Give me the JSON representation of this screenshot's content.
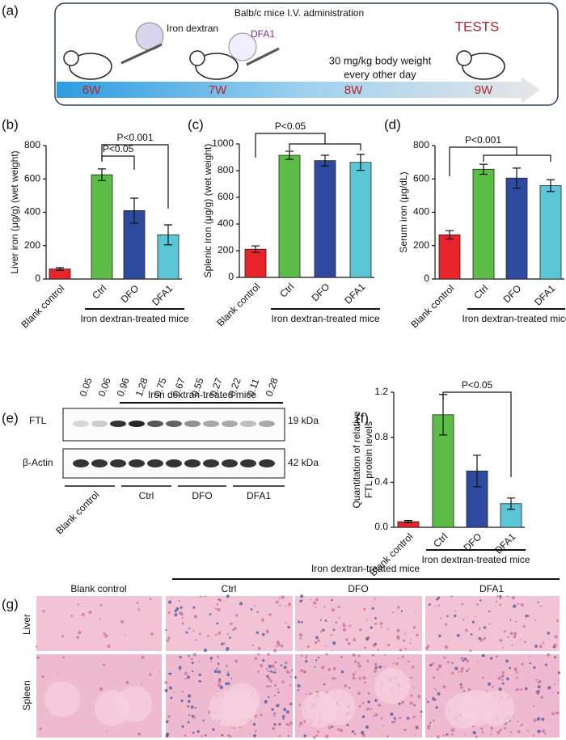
{
  "panel_labels": [
    "(a)",
    "(b)",
    "(c)",
    "(d)",
    "(e)",
    "(f)",
    "(g)"
  ],
  "schematic": {
    "title": "Balb/c mice  I.V. administration",
    "iron_dextran": "Iron dextran",
    "drug": "DFA1",
    "tests": "TESTS",
    "dose": [
      "30 mg/kg body weight",
      "every other day"
    ],
    "weeks": [
      "6W",
      "7W",
      "8W",
      "9W"
    ]
  },
  "chart_data": [
    {
      "type": "bar",
      "ylabel": [
        "Liver iron (μg/g) (wet weight)"
      ],
      "categories": [
        "Blank control",
        "Ctrl",
        "DFO",
        "DFA1"
      ],
      "values": [
        60,
        625,
        410,
        265
      ],
      "errors": [
        8,
        35,
        75,
        60
      ],
      "colors": [
        "#e8232a",
        "#5bbd46",
        "#2e4a9e",
        "#5bc7d6"
      ],
      "ylim": [
        0,
        800
      ],
      "yticks": [
        0,
        200,
        400,
        600,
        800
      ],
      "group_label": "Iron dextran-treated mice",
      "annotations": [
        "P<0.001",
        "P<0.05"
      ]
    },
    {
      "type": "bar",
      "ylabel": [
        "Splenic iron (μg/g) (wet weight)"
      ],
      "categories": [
        "Blank control",
        "Ctrl",
        "DFO",
        "DFA1"
      ],
      "values": [
        211,
        915,
        875,
        862
      ],
      "errors": [
        25,
        30,
        40,
        60
      ],
      "colors": [
        "#e8232a",
        "#5bbd46",
        "#2e4a9e",
        "#5bc7d6"
      ],
      "ylim": [
        0,
        1000
      ],
      "yticks": [
        0,
        200,
        400,
        600,
        800,
        1000
      ],
      "group_label": "Iron dextran-treated mice",
      "annotations": [
        "P<0.05"
      ]
    },
    {
      "type": "bar",
      "ylabel": [
        "Serum iron (μg/dL)"
      ],
      "categories": [
        "Blank control",
        "Ctrl",
        "DFO",
        "DFA1"
      ],
      "values": [
        265,
        658,
        605,
        560
      ],
      "errors": [
        25,
        30,
        60,
        35
      ],
      "colors": [
        "#e8232a",
        "#5bbd46",
        "#2e4a9e",
        "#5bc7d6"
      ],
      "ylim": [
        0,
        800
      ],
      "yticks": [
        0,
        200,
        400,
        600,
        800
      ],
      "group_label": "Iron dextran-treated mice",
      "annotations": [
        "P<0.001"
      ]
    },
    {
      "type": "bar",
      "ylabel": [
        "Quantitation of relative",
        "FTL protein levels"
      ],
      "categories": [
        "Blank control",
        "Ctrl",
        "DFO",
        "DFA1"
      ],
      "values": [
        0.05,
        1.0,
        0.5,
        0.21
      ],
      "errors": [
        0.01,
        0.18,
        0.14,
        0.05
      ],
      "colors": [
        "#e8232a",
        "#5bbd46",
        "#2e4a9e",
        "#5bc7d6"
      ],
      "ylim": [
        0,
        1.2
      ],
      "yticks": [
        {
          "value": 0,
          "label": "0.0"
        },
        0.4,
        0.8,
        1.2
      ],
      "group_label": "Iron dextran-treated mice",
      "annotations": [
        "P<0.05"
      ]
    }
  ],
  "western_blot": {
    "group_label": "Iron dextran-treated mice",
    "ratios": [
      0.05,
      0.06,
      0.96,
      1.28,
      0.75,
      0.67,
      0.55,
      0.27,
      0.22,
      0.11,
      0.28
    ],
    "bands": [
      "FTL",
      "β-Actin"
    ],
    "sizes": [
      "19 kDa",
      "42 kDa"
    ],
    "lanes": [
      "Blank control",
      "Ctrl",
      "DFO",
      "DFA1"
    ]
  },
  "histology": {
    "group_label": "Iron dextran-treated mice",
    "columns": [
      "Blank control",
      "Ctrl",
      "DFO",
      "DFA1"
    ],
    "rows": [
      "Liver",
      "Spleen"
    ]
  }
}
